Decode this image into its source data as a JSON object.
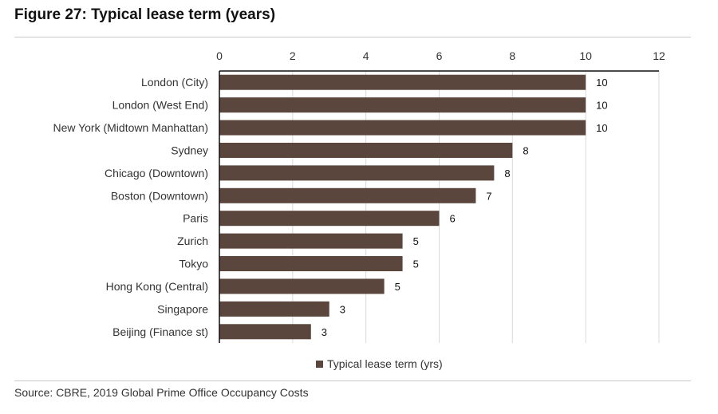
{
  "figure_title": "Figure 27: Typical lease term (years)",
  "source": "Source:  CBRE, 2019 Global Prime Office Occupancy Costs",
  "colors": {
    "bar": "#5a463c",
    "grid": "#d9d9d9",
    "axis": "#111111"
  },
  "chart_data": {
    "type": "bar",
    "orientation": "horizontal",
    "categories": [
      "London (City)",
      "London (West End)",
      "New York (Midtown Manhattan)",
      "Sydney",
      "Chicago (Downtown)",
      "Boston (Downtown)",
      "Paris",
      "Zurich",
      "Tokyo",
      "Hong Kong (Central)",
      "Singapore",
      "Beijing (Finance st)"
    ],
    "series": [
      {
        "name": "Typical lease term (yrs)",
        "values": [
          10,
          10,
          10,
          8,
          7.5,
          7,
          6,
          5,
          5,
          4.5,
          3,
          2.5
        ],
        "labels": [
          "10",
          "10",
          "10",
          "8",
          "8",
          "7",
          "6",
          "5",
          "5",
          "5",
          "3",
          "3"
        ]
      }
    ],
    "xlim": [
      0,
      12
    ],
    "xticks": [
      "0",
      "2",
      "4",
      "6",
      "8",
      "10",
      "12"
    ],
    "x_axis_position": "top",
    "grid": true,
    "legend_position": "bottom"
  }
}
